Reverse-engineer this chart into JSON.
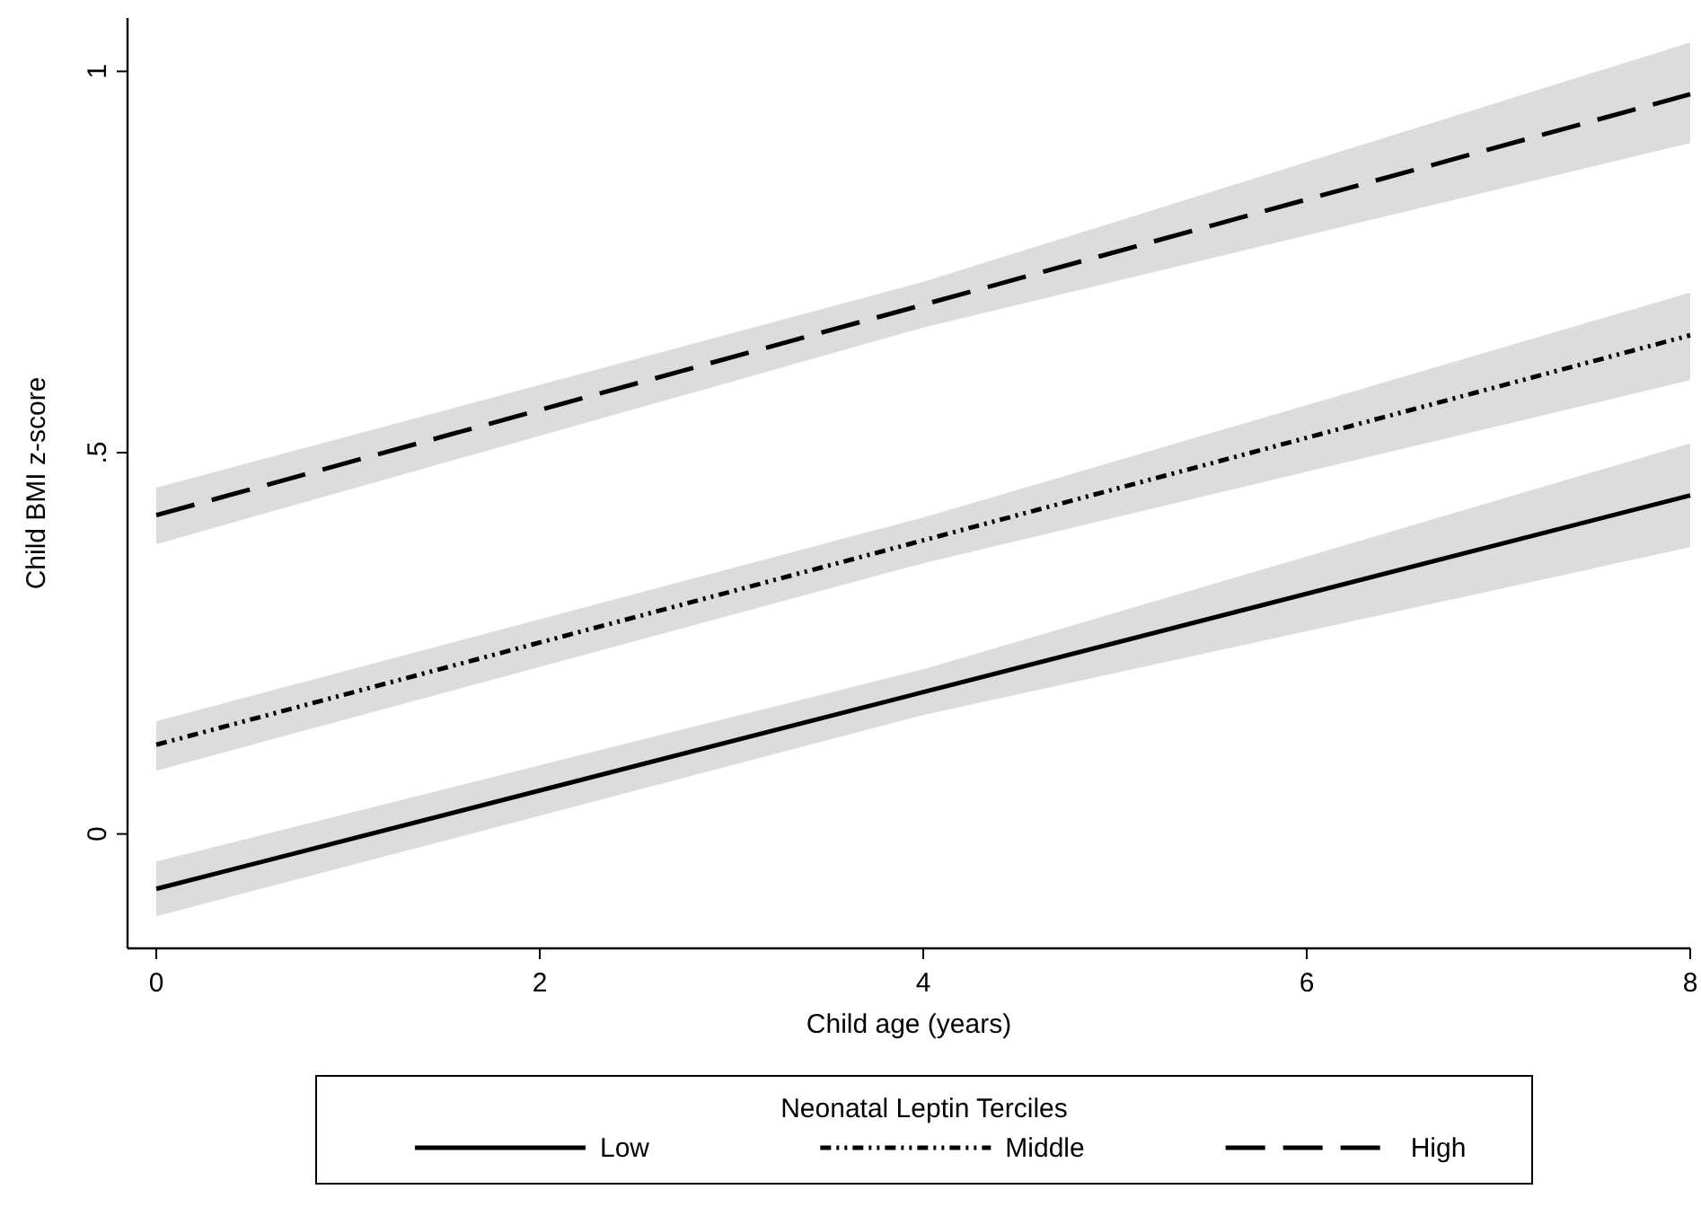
{
  "chart_data": {
    "type": "line",
    "xlabel": "Child age (years)",
    "ylabel": "Child BMI z-score",
    "legend_title": "Neonatal Leptin Terciles",
    "legend": "bottom",
    "grid": false,
    "xlim": [
      -0.15,
      8
    ],
    "xticks": [
      0,
      2,
      4,
      6,
      8
    ],
    "ylim": [
      -0.15,
      1.07
    ],
    "yticks": [
      0,
      {
        "value": 0.5,
        "label": ".5"
      },
      1
    ],
    "series": [
      {
        "name": "Low",
        "color": "#000000",
        "line_style": "solid",
        "x": [
          0,
          4,
          8
        ],
        "values": [
          -0.072,
          0.186,
          0.444
        ],
        "lower": [
          -0.108,
          0.156,
          0.376
        ],
        "upper": [
          -0.036,
          0.216,
          0.512
        ]
      },
      {
        "name": "Middle",
        "color": "#000000",
        "line_style": "dotted",
        "x": [
          0,
          4,
          8
        ],
        "values": [
          0.117,
          0.385,
          0.654
        ],
        "lower": [
          0.083,
          0.355,
          0.595
        ],
        "upper": [
          0.148,
          0.415,
          0.71
        ]
      },
      {
        "name": "High",
        "color": "#000000",
        "line_style": "dashed",
        "x": [
          0,
          4,
          8
        ],
        "values": [
          0.418,
          0.694,
          0.97
        ],
        "lower": [
          0.38,
          0.664,
          0.906
        ],
        "upper": [
          0.454,
          0.724,
          1.038
        ]
      }
    ]
  }
}
